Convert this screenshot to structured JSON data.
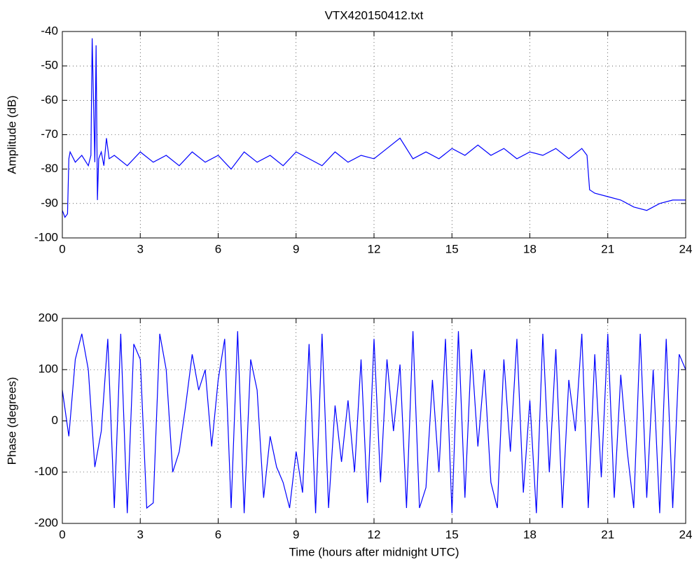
{
  "chart_data": [
    {
      "type": "line",
      "title": "VTX420150412.txt",
      "y_label": "Amplitude (dB)",
      "xlim": [
        0,
        24
      ],
      "xticks": [
        0,
        3,
        6,
        9,
        12,
        15,
        18,
        21,
        24
      ],
      "ylim": [
        -100,
        -40
      ],
      "yticks": [
        -100,
        -90,
        -80,
        -70,
        -60,
        -50,
        -40
      ],
      "grid": true,
      "series": [
        {
          "color": "#0000ff",
          "x": [
            0,
            0.1,
            0.2,
            0.25,
            0.3,
            0.5,
            0.75,
            1,
            1.1,
            1.15,
            1.2,
            1.25,
            1.3,
            1.35,
            1.4,
            1.5,
            1.6,
            1.7,
            1.8,
            2,
            2.5,
            3,
            3.5,
            4,
            4.5,
            5,
            5.5,
            6,
            6.5,
            7,
            7.5,
            8,
            8.5,
            9,
            9.5,
            10,
            10.5,
            11,
            11.5,
            12,
            12.5,
            13,
            13.5,
            14,
            14.5,
            15,
            15.5,
            16,
            16.5,
            17,
            17.5,
            18,
            18.5,
            19,
            19.5,
            20,
            20.2,
            20.3,
            20.5,
            21,
            21.5,
            22,
            22.5,
            23,
            23.5,
            24
          ],
          "values": [
            -92,
            -94,
            -93,
            -77,
            -75,
            -78,
            -76,
            -79,
            -76,
            -42,
            -60,
            -78,
            -44,
            -89,
            -77,
            -75,
            -79,
            -71,
            -77,
            -76,
            -79,
            -75,
            -78,
            -76,
            -79,
            -75,
            -78,
            -76,
            -80,
            -75,
            -78,
            -76,
            -79,
            -75,
            -77,
            -79,
            -75,
            -78,
            -76,
            -77,
            -74,
            -71,
            -77,
            -75,
            -77,
            -74,
            -76,
            -73,
            -76,
            -74,
            -77,
            -75,
            -76,
            -74,
            -77,
            -74,
            -76,
            -86,
            -87,
            -88,
            -89,
            -91,
            -92,
            -90,
            -89,
            -89
          ]
        }
      ]
    },
    {
      "type": "line",
      "x_label": "Time (hours after midnight UTC)",
      "y_label": "Phase (degrees)",
      "xlim": [
        0,
        24
      ],
      "xticks": [
        0,
        3,
        6,
        9,
        12,
        15,
        18,
        21,
        24
      ],
      "ylim": [
        -200,
        200
      ],
      "yticks": [
        -200,
        -100,
        0,
        100,
        200
      ],
      "grid": true,
      "series": [
        {
          "color": "#0000ff",
          "x": [
            0,
            0.25,
            0.5,
            0.75,
            1,
            1.25,
            1.5,
            1.75,
            2,
            2.25,
            2.5,
            2.75,
            3,
            3.25,
            3.5,
            3.75,
            4,
            4.25,
            4.5,
            4.75,
            5,
            5.25,
            5.5,
            5.75,
            6,
            6.25,
            6.5,
            6.75,
            7,
            7.25,
            7.5,
            7.75,
            8,
            8.25,
            8.5,
            8.75,
            9,
            9.25,
            9.5,
            9.75,
            10,
            10.25,
            10.5,
            10.75,
            11,
            11.25,
            11.5,
            11.75,
            12,
            12.25,
            12.5,
            12.75,
            13,
            13.25,
            13.5,
            13.75,
            14,
            14.25,
            14.5,
            14.75,
            15,
            15.25,
            15.5,
            15.75,
            16,
            16.25,
            16.5,
            16.75,
            17,
            17.25,
            17.5,
            17.75,
            18,
            18.25,
            18.5,
            18.75,
            19,
            19.25,
            19.5,
            19.75,
            20,
            20.25,
            20.5,
            20.75,
            21,
            21.25,
            21.5,
            21.75,
            22,
            22.25,
            22.5,
            22.75,
            23,
            23.25,
            23.5,
            23.75,
            24
          ],
          "values": [
            60,
            -30,
            120,
            170,
            100,
            -90,
            -20,
            160,
            -170,
            170,
            -180,
            150,
            120,
            -170,
            -160,
            170,
            100,
            -100,
            -60,
            30,
            130,
            60,
            100,
            -50,
            80,
            160,
            -170,
            175,
            -180,
            120,
            60,
            -150,
            -30,
            -90,
            -120,
            -170,
            -60,
            -140,
            150,
            -180,
            170,
            -170,
            30,
            -80,
            40,
            -100,
            120,
            -160,
            160,
            -120,
            120,
            -20,
            110,
            -170,
            175,
            -170,
            -130,
            80,
            -100,
            160,
            -180,
            175,
            -150,
            140,
            -50,
            100,
            -120,
            -170,
            120,
            -60,
            160,
            -140,
            40,
            -180,
            170,
            -100,
            140,
            -170,
            80,
            -20,
            170,
            -170,
            130,
            -110,
            170,
            -150,
            90,
            -60,
            -170,
            170,
            -150,
            100,
            -180,
            160,
            -170,
            130,
            100
          ]
        }
      ]
    }
  ]
}
